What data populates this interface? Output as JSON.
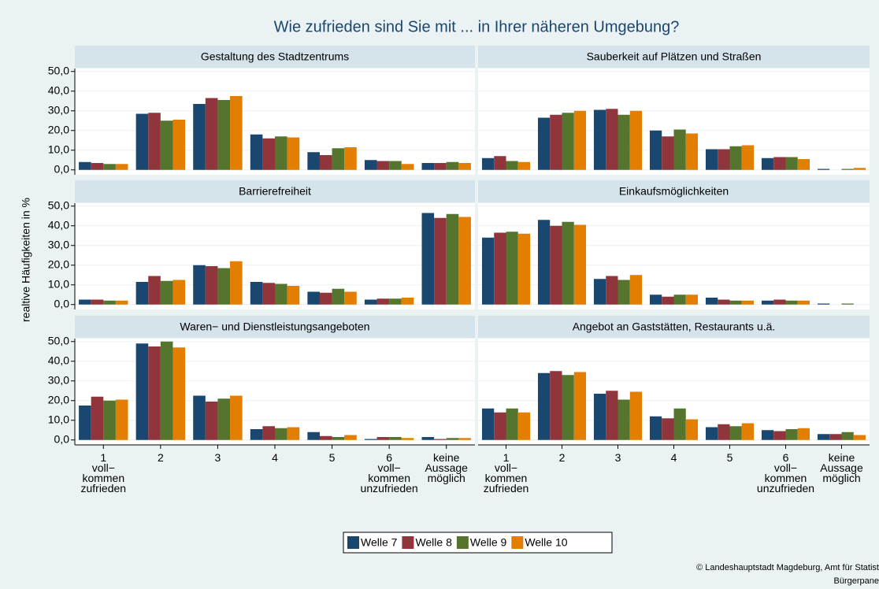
{
  "title": "Wie zufrieden sind Sie mit ... in Ihrer näheren Umgebung?",
  "y_label": "realtive Häufigkeiten in %",
  "credit": [
    "© Landeshauptstadt Magdeburg, Amt für Statist",
    "Bürgerpane"
  ],
  "legend": [
    {
      "name": "Welle 7",
      "color": "#1a476f"
    },
    {
      "name": "Welle 8",
      "color": "#90353b"
    },
    {
      "name": "Welle 9",
      "color": "#55752f"
    },
    {
      "name": "Welle 10",
      "color": "#e37e00"
    }
  ],
  "ylim": [
    -2.5,
    51.5
  ],
  "yticks": [
    {
      "value": 0,
      "label": "0,0"
    },
    {
      "value": 10,
      "label": "10,0"
    },
    {
      "value": 20,
      "label": "20,0"
    },
    {
      "value": 30,
      "label": "30,0"
    },
    {
      "value": 40,
      "label": "40,0"
    },
    {
      "value": 50,
      "label": "50,0"
    }
  ],
  "grid": true,
  "chart_data": [
    {
      "type": "bar",
      "title": "Gestaltung des Stadtzentrums",
      "series": [
        {
          "values": [
            4,
            28.5,
            33.5,
            18,
            9,
            5,
            3.5
          ]
        },
        {
          "values": [
            3.5,
            29,
            36.5,
            16,
            7.5,
            4.5,
            3.5
          ]
        },
        {
          "values": [
            3,
            25,
            35.5,
            17,
            11,
            4.5,
            4
          ]
        },
        {
          "values": [
            3,
            25.5,
            37.5,
            16.5,
            11.5,
            3,
            3.5
          ]
        }
      ]
    },
    {
      "type": "bar",
      "title": "Sauberkeit auf Plätzen und Straßen",
      "series": [
        {
          "values": [
            6,
            26.5,
            30.5,
            20,
            10.5,
            6,
            0.5
          ]
        },
        {
          "values": [
            7,
            28,
            31,
            17,
            10.5,
            6.5,
            0
          ]
        },
        {
          "values": [
            4.5,
            29,
            28,
            20.5,
            12,
            6.5,
            0.5
          ]
        },
        {
          "values": [
            4,
            30,
            30,
            18.5,
            12.5,
            5.5,
            1
          ]
        }
      ]
    },
    {
      "type": "bar",
      "title": "Barrierefreiheit",
      "series": [
        {
          "values": [
            2.5,
            11.5,
            20,
            11.5,
            6.5,
            2.5,
            46.5
          ]
        },
        {
          "values": [
            2.5,
            14.5,
            19.5,
            11,
            6,
            3,
            44
          ]
        },
        {
          "values": [
            2,
            12,
            18.5,
            10.5,
            8,
            3,
            46
          ]
        },
        {
          "values": [
            2,
            12.5,
            22,
            9.5,
            6.5,
            3.5,
            44.5
          ]
        }
      ]
    },
    {
      "type": "bar",
      "title": "Einkaufsmöglichkeiten",
      "series": [
        {
          "values": [
            34,
            43,
            13,
            5,
            3.5,
            2,
            0.5
          ]
        },
        {
          "values": [
            36.5,
            40,
            14.5,
            4,
            2.5,
            2.5,
            0
          ]
        },
        {
          "values": [
            37,
            42,
            12.5,
            5,
            2,
            2,
            0.5
          ]
        },
        {
          "values": [
            36,
            40.5,
            15,
            5,
            2,
            2,
            0
          ]
        }
      ]
    },
    {
      "type": "bar",
      "title": "Waren− und Dienstleistungsangeboten",
      "categories": [
        "1\nvoll−\nkommen\nzufrieden",
        "2",
        "3",
        "4",
        "5",
        "6\nvoll−\nkommen\nunzufrieden",
        "keine\nAussage\nmöglich"
      ],
      "series": [
        {
          "values": [
            17.5,
            49,
            22.5,
            5.5,
            4,
            0.5,
            1.5
          ]
        },
        {
          "values": [
            22,
            47.5,
            19.5,
            7,
            2,
            1.5,
            0.5
          ]
        },
        {
          "values": [
            20,
            50,
            21,
            6,
            1.5,
            1.5,
            1
          ]
        },
        {
          "values": [
            20.5,
            47,
            22.5,
            6.5,
            2.5,
            1,
            1
          ]
        }
      ]
    },
    {
      "type": "bar",
      "title": "Angebot an Gaststätten, Restaurants u.ä.",
      "categories": [
        "1\nvoll−\nkommen\nzufrieden",
        "2",
        "3",
        "4",
        "5",
        "6\nvoll−\nkommen\nunzufrieden",
        "keine\nAussage\nmöglich"
      ],
      "series": [
        {
          "values": [
            16,
            34,
            23.5,
            12,
            6.5,
            5,
            3
          ]
        },
        {
          "values": [
            14,
            35,
            25,
            11,
            8,
            4.5,
            3
          ]
        },
        {
          "values": [
            16,
            33,
            20.5,
            16,
            7,
            5.5,
            4
          ]
        },
        {
          "values": [
            14,
            34.5,
            24.5,
            10.5,
            8.5,
            6,
            2.5
          ]
        }
      ]
    }
  ]
}
